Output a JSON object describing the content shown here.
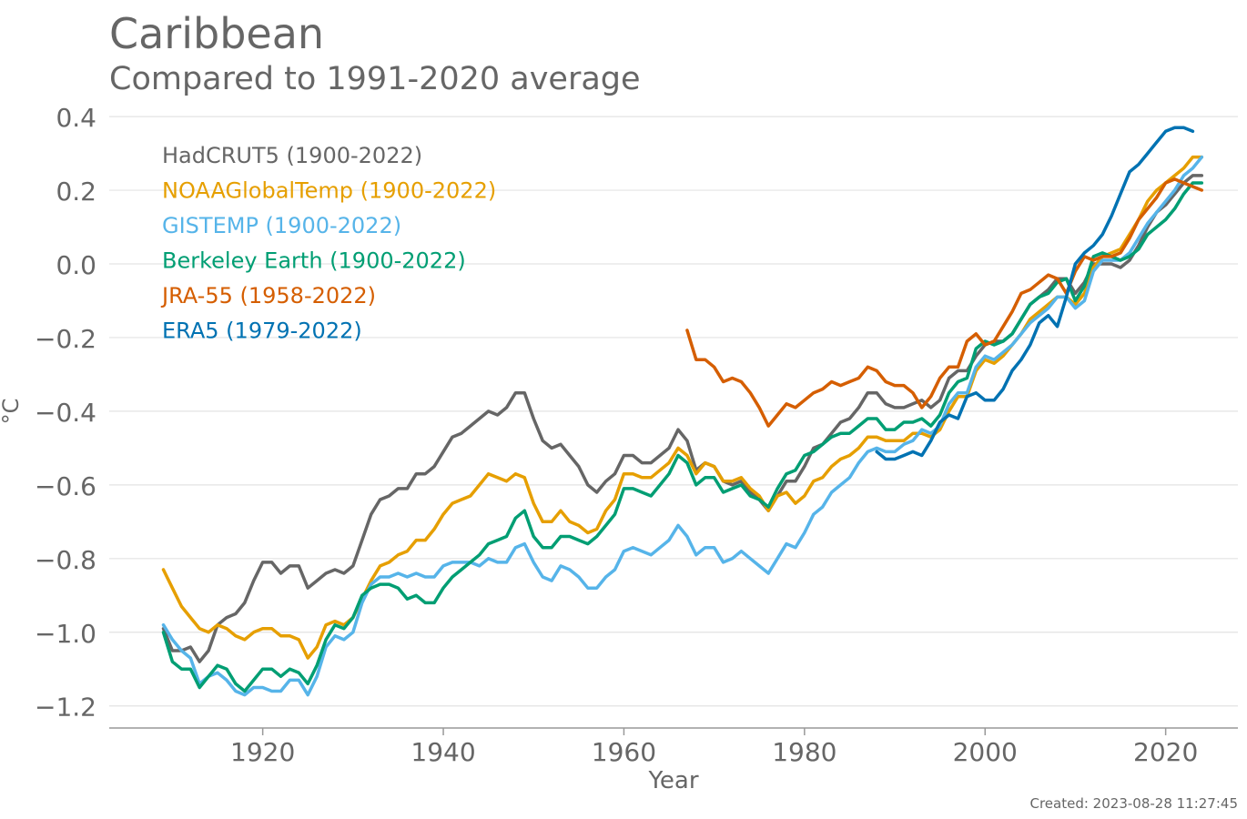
{
  "footer": {
    "created": "Created: 2023-08-28 11:27:45"
  },
  "chart_data": {
    "type": "line",
    "title": "Caribbean",
    "subtitle": "Compared to 1991-2020 average",
    "xlabel": "Year",
    "ylabel": "°C",
    "xlim": [
      1903,
      2028
    ],
    "ylim": [
      -1.26,
      0.42
    ],
    "xticks": [
      1920,
      1940,
      1960,
      1980,
      2000,
      2020
    ],
    "yticks": [
      {
        "value": 0.4,
        "label": "0.4"
      },
      {
        "value": 0.2,
        "label": "0.2"
      },
      {
        "value": 0.0,
        "label": "0.0"
      },
      {
        "value": -0.2,
        "label": "−0.2"
      },
      {
        "value": -0.4,
        "label": "−0.4"
      },
      {
        "value": -0.6,
        "label": "−0.6"
      },
      {
        "value": -0.8,
        "label": "−0.8"
      },
      {
        "value": -1.0,
        "label": "−1.0"
      },
      {
        "value": -1.2,
        "label": "−1.2"
      }
    ],
    "grid": "horizontal",
    "legend_position": "top-left",
    "series": [
      {
        "name": "HadCRUT5 (1900-2022)",
        "color": "#666666",
        "start": 1909,
        "values": [
          -0.99,
          -1.05,
          -1.05,
          -1.04,
          -1.08,
          -1.05,
          -0.98,
          -0.96,
          -0.95,
          -0.92,
          -0.86,
          -0.81,
          -0.81,
          -0.84,
          -0.82,
          -0.82,
          -0.88,
          -0.86,
          -0.84,
          -0.83,
          -0.84,
          -0.82,
          -0.75,
          -0.68,
          -0.64,
          -0.63,
          -0.61,
          -0.61,
          -0.57,
          -0.57,
          -0.55,
          -0.51,
          -0.47,
          -0.46,
          -0.44,
          -0.42,
          -0.4,
          -0.41,
          -0.39,
          -0.35,
          -0.35,
          -0.42,
          -0.48,
          -0.5,
          -0.49,
          -0.52,
          -0.55,
          -0.6,
          -0.62,
          -0.59,
          -0.57,
          -0.52,
          -0.52,
          -0.54,
          -0.54,
          -0.52,
          -0.5,
          -0.45,
          -0.48,
          -0.56,
          -0.54,
          -0.55,
          -0.59,
          -0.6,
          -0.59,
          -0.62,
          -0.64,
          -0.67,
          -0.63,
          -0.59,
          -0.59,
          -0.55,
          -0.5,
          -0.49,
          -0.46,
          -0.43,
          -0.42,
          -0.39,
          -0.35,
          -0.35,
          -0.38,
          -0.39,
          -0.39,
          -0.38,
          -0.37,
          -0.39,
          -0.37,
          -0.31,
          -0.29,
          -0.29,
          -0.25,
          -0.22,
          -0.21,
          -0.21,
          -0.19,
          -0.15,
          -0.11,
          -0.09,
          -0.07,
          -0.04,
          -0.04,
          -0.08,
          -0.05,
          0.0,
          0.0,
          0.0,
          -0.01,
          0.01,
          0.05,
          0.1,
          0.14,
          0.16,
          0.19,
          0.22,
          0.24,
          0.24
        ]
      },
      {
        "name": "NOAAGlobalTemp (1900-2022)",
        "color": "#e69f00",
        "start": 1909,
        "values": [
          -0.83,
          -0.88,
          -0.93,
          -0.96,
          -0.99,
          -1.0,
          -0.98,
          -0.99,
          -1.01,
          -1.02,
          -1.0,
          -0.99,
          -0.99,
          -1.01,
          -1.01,
          -1.02,
          -1.07,
          -1.04,
          -0.98,
          -0.97,
          -0.98,
          -0.96,
          -0.91,
          -0.86,
          -0.82,
          -0.81,
          -0.79,
          -0.78,
          -0.75,
          -0.75,
          -0.72,
          -0.68,
          -0.65,
          -0.64,
          -0.63,
          -0.6,
          -0.57,
          -0.58,
          -0.59,
          -0.57,
          -0.58,
          -0.65,
          -0.7,
          -0.7,
          -0.67,
          -0.7,
          -0.71,
          -0.73,
          -0.72,
          -0.67,
          -0.64,
          -0.57,
          -0.57,
          -0.58,
          -0.58,
          -0.56,
          -0.54,
          -0.5,
          -0.52,
          -0.57,
          -0.54,
          -0.55,
          -0.59,
          -0.59,
          -0.58,
          -0.61,
          -0.63,
          -0.67,
          -0.63,
          -0.62,
          -0.65,
          -0.63,
          -0.59,
          -0.58,
          -0.55,
          -0.53,
          -0.52,
          -0.5,
          -0.47,
          -0.47,
          -0.48,
          -0.48,
          -0.48,
          -0.46,
          -0.46,
          -0.47,
          -0.45,
          -0.4,
          -0.36,
          -0.36,
          -0.29,
          -0.26,
          -0.27,
          -0.25,
          -0.22,
          -0.19,
          -0.15,
          -0.13,
          -0.11,
          -0.09,
          -0.09,
          -0.11,
          -0.08,
          -0.01,
          0.02,
          0.03,
          0.04,
          0.08,
          0.12,
          0.17,
          0.2,
          0.22,
          0.24,
          0.26,
          0.29,
          0.29
        ]
      },
      {
        "name": "GISTEMP (1900-2022)",
        "color": "#56b4e9",
        "start": 1909,
        "values": [
          -0.98,
          -1.02,
          -1.05,
          -1.07,
          -1.14,
          -1.12,
          -1.11,
          -1.13,
          -1.16,
          -1.17,
          -1.15,
          -1.15,
          -1.16,
          -1.16,
          -1.13,
          -1.13,
          -1.17,
          -1.12,
          -1.04,
          -1.01,
          -1.02,
          -1.0,
          -0.92,
          -0.87,
          -0.85,
          -0.85,
          -0.84,
          -0.85,
          -0.84,
          -0.85,
          -0.85,
          -0.82,
          -0.81,
          -0.81,
          -0.81,
          -0.82,
          -0.8,
          -0.81,
          -0.81,
          -0.77,
          -0.76,
          -0.81,
          -0.85,
          -0.86,
          -0.82,
          -0.83,
          -0.85,
          -0.88,
          -0.88,
          -0.85,
          -0.83,
          -0.78,
          -0.77,
          -0.78,
          -0.79,
          -0.77,
          -0.75,
          -0.71,
          -0.74,
          -0.79,
          -0.77,
          -0.77,
          -0.81,
          -0.8,
          -0.78,
          -0.8,
          -0.82,
          -0.84,
          -0.8,
          -0.76,
          -0.77,
          -0.73,
          -0.68,
          -0.66,
          -0.62,
          -0.6,
          -0.58,
          -0.54,
          -0.51,
          -0.5,
          -0.51,
          -0.51,
          -0.49,
          -0.48,
          -0.45,
          -0.46,
          -0.44,
          -0.38,
          -0.35,
          -0.35,
          -0.28,
          -0.25,
          -0.26,
          -0.24,
          -0.22,
          -0.19,
          -0.16,
          -0.14,
          -0.12,
          -0.09,
          -0.09,
          -0.12,
          -0.1,
          -0.02,
          0.01,
          0.01,
          0.01,
          0.03,
          0.07,
          0.11,
          0.14,
          0.17,
          0.2,
          0.24,
          0.26,
          0.29
        ]
      },
      {
        "name": "Berkeley Earth (1900-2022)",
        "color": "#009e73",
        "start": 1909,
        "values": [
          -1.0,
          -1.08,
          -1.1,
          -1.1,
          -1.15,
          -1.12,
          -1.09,
          -1.1,
          -1.14,
          -1.16,
          -1.13,
          -1.1,
          -1.1,
          -1.12,
          -1.1,
          -1.11,
          -1.14,
          -1.09,
          -1.02,
          -0.98,
          -0.99,
          -0.96,
          -0.9,
          -0.88,
          -0.87,
          -0.87,
          -0.88,
          -0.91,
          -0.9,
          -0.92,
          -0.92,
          -0.88,
          -0.85,
          -0.83,
          -0.81,
          -0.79,
          -0.76,
          -0.75,
          -0.74,
          -0.69,
          -0.67,
          -0.74,
          -0.77,
          -0.77,
          -0.74,
          -0.74,
          -0.75,
          -0.76,
          -0.74,
          -0.71,
          -0.68,
          -0.61,
          -0.61,
          -0.62,
          -0.63,
          -0.6,
          -0.57,
          -0.52,
          -0.54,
          -0.6,
          -0.58,
          -0.58,
          -0.62,
          -0.61,
          -0.6,
          -0.63,
          -0.64,
          -0.66,
          -0.61,
          -0.57,
          -0.56,
          -0.52,
          -0.51,
          -0.49,
          -0.47,
          -0.46,
          -0.46,
          -0.44,
          -0.42,
          -0.42,
          -0.45,
          -0.45,
          -0.43,
          -0.43,
          -0.42,
          -0.44,
          -0.41,
          -0.35,
          -0.32,
          -0.31,
          -0.23,
          -0.21,
          -0.22,
          -0.21,
          -0.19,
          -0.15,
          -0.11,
          -0.09,
          -0.08,
          -0.05,
          -0.04,
          -0.1,
          -0.06,
          0.02,
          0.03,
          0.02,
          0.01,
          0.02,
          0.04,
          0.08,
          0.1,
          0.12,
          0.15,
          0.19,
          0.22,
          0.22
        ]
      },
      {
        "name": "JRA-55 (1958-2022)",
        "color": "#d55e00",
        "start": 1967,
        "values": [
          -0.18,
          -0.26,
          -0.26,
          -0.28,
          -0.32,
          -0.31,
          -0.32,
          -0.35,
          -0.39,
          -0.44,
          -0.41,
          -0.38,
          -0.39,
          -0.37,
          -0.35,
          -0.34,
          -0.32,
          -0.33,
          -0.32,
          -0.31,
          -0.28,
          -0.29,
          -0.32,
          -0.33,
          -0.33,
          -0.35,
          -0.39,
          -0.36,
          -0.31,
          -0.28,
          -0.28,
          -0.21,
          -0.19,
          -0.22,
          -0.21,
          -0.17,
          -0.13,
          -0.08,
          -0.07,
          -0.05,
          -0.03,
          -0.04,
          -0.08,
          -0.02,
          0.02,
          0.01,
          0.02,
          0.02,
          0.03,
          0.07,
          0.12,
          0.15,
          0.18,
          0.22,
          0.23,
          0.22,
          0.21,
          0.2
        ]
      },
      {
        "name": "ERA5 (1979-2022)",
        "color": "#0072b2",
        "start": 1988,
        "values": [
          -0.51,
          -0.53,
          -0.53,
          -0.52,
          -0.51,
          -0.52,
          -0.48,
          -0.43,
          -0.41,
          -0.42,
          -0.36,
          -0.35,
          -0.37,
          -0.37,
          -0.34,
          -0.29,
          -0.26,
          -0.22,
          -0.16,
          -0.14,
          -0.17,
          -0.09,
          0.0,
          0.03,
          0.05,
          0.08,
          0.13,
          0.19,
          0.25,
          0.27,
          0.3,
          0.33,
          0.36,
          0.37,
          0.37,
          0.36
        ]
      }
    ]
  }
}
